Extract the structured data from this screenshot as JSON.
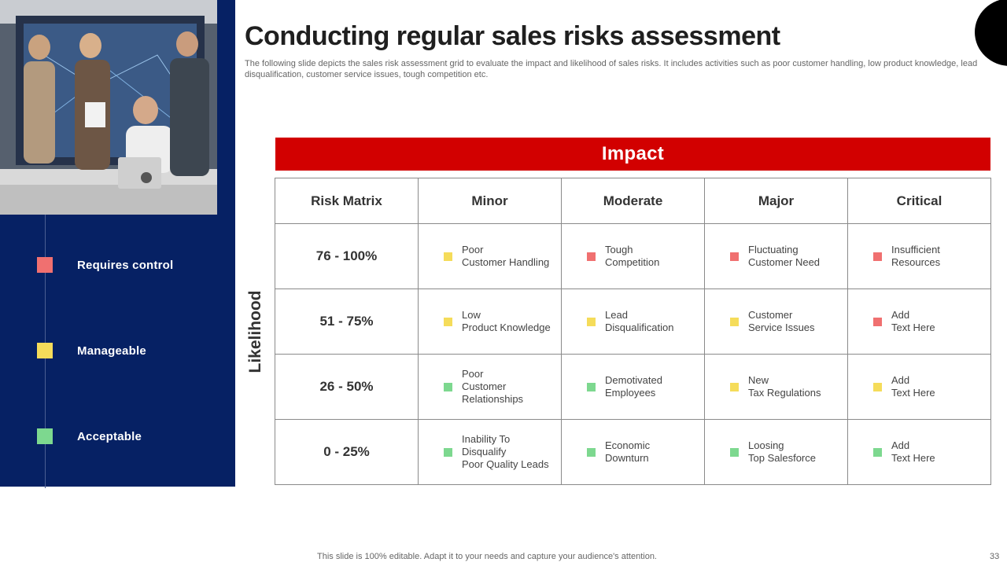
{
  "title": "Conducting regular sales risks assessment",
  "subtitle": "The following slide depicts the sales risk assessment grid to evaluate the impact and likelihood of sales risks. It includes activities such as poor customer handling, low product knowledge, lead disqualification, customer service issues, tough competition etc.",
  "colors": {
    "red": "#f07070",
    "yellow": "#f5dc5a",
    "green": "#7dd88f",
    "navy": "#062164",
    "accent": "#d20000"
  },
  "legend": [
    {
      "label": "Requires control",
      "level": "red"
    },
    {
      "label": "Manageable",
      "level": "yellow"
    },
    {
      "label": "Acceptable",
      "level": "green"
    }
  ],
  "impact_label": "Impact",
  "likelihood_label": "Likelihood",
  "matrix": {
    "header": [
      "Risk Matrix",
      "Minor",
      "Moderate",
      "Major",
      "Critical"
    ],
    "rows": [
      {
        "range": "76 - 100%",
        "cells": [
          {
            "lines": [
              "Poor",
              "Customer Handling"
            ],
            "level": "yellow"
          },
          {
            "lines": [
              "Tough",
              "Competition"
            ],
            "level": "red"
          },
          {
            "lines": [
              "Fluctuating",
              "Customer Need"
            ],
            "level": "red"
          },
          {
            "lines": [
              "Insufficient",
              "Resources"
            ],
            "level": "red"
          }
        ]
      },
      {
        "range": "51 - 75%",
        "cells": [
          {
            "lines": [
              "Low",
              "Product Knowledge"
            ],
            "level": "yellow"
          },
          {
            "lines": [
              "Lead",
              "Disqualification"
            ],
            "level": "yellow"
          },
          {
            "lines": [
              "Customer",
              "Service Issues"
            ],
            "level": "yellow"
          },
          {
            "lines": [
              "Add",
              "Text Here"
            ],
            "level": "red"
          }
        ]
      },
      {
        "range": "26 - 50%",
        "cells": [
          {
            "lines": [
              "Poor",
              "Customer",
              "Relationships"
            ],
            "level": "green"
          },
          {
            "lines": [
              "Demotivated",
              "Employees"
            ],
            "level": "green"
          },
          {
            "lines": [
              "New",
              "Tax Regulations"
            ],
            "level": "yellow"
          },
          {
            "lines": [
              "Add",
              "Text Here"
            ],
            "level": "yellow"
          }
        ]
      },
      {
        "range": "0 - 25%",
        "cells": [
          {
            "lines": [
              "Inability To",
              "Disqualify",
              "Poor Quality Leads"
            ],
            "level": "green"
          },
          {
            "lines": [
              "Economic",
              "Downturn"
            ],
            "level": "green"
          },
          {
            "lines": [
              "Loosing",
              "Top Salesforce"
            ],
            "level": "green"
          },
          {
            "lines": [
              "Add",
              "Text Here"
            ],
            "level": "green"
          }
        ]
      }
    ]
  },
  "footer": "This slide is 100% editable. Adapt it to your needs and capture your audience's attention.",
  "page_number": "33"
}
